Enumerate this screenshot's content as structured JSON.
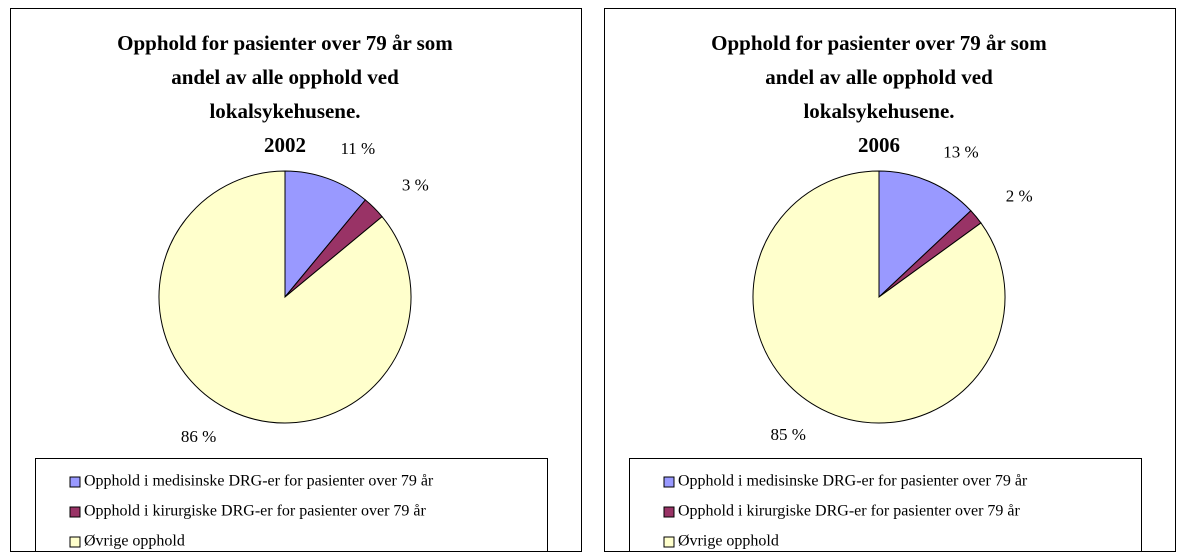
{
  "chart_data": [
    {
      "type": "pie",
      "title": [
        "Opphold for pasienter over 79 år som",
        "andel av alle opphold ved",
        "lokalsykehusene.",
        "2002"
      ],
      "categories": [
        "Opphold i medisinske DRG-er for pasienter over 79 år",
        "Opphold i kirurgiske DRG-er for pasienter over 79 år",
        "Øvrige opphold"
      ],
      "values": [
        11,
        3,
        86
      ],
      "value_labels": [
        "11 %",
        "3 %",
        "86 %"
      ],
      "colors": [
        "#9999ff",
        "#993366",
        "#ffffcc"
      ]
    },
    {
      "type": "pie",
      "title": [
        "Opphold for pasienter over 79 år som",
        "andel av alle opphold ved",
        "lokalsykehusene.",
        "2006"
      ],
      "categories": [
        "Opphold i medisinske DRG-er for pasienter over 79 år",
        "Opphold i kirurgiske DRG-er for pasienter over 79 år",
        "Øvrige opphold"
      ],
      "values": [
        13,
        2,
        85
      ],
      "value_labels": [
        "13 %",
        "2 %",
        "85 %"
      ],
      "colors": [
        "#9999ff",
        "#993366",
        "#ffffcc"
      ]
    }
  ]
}
